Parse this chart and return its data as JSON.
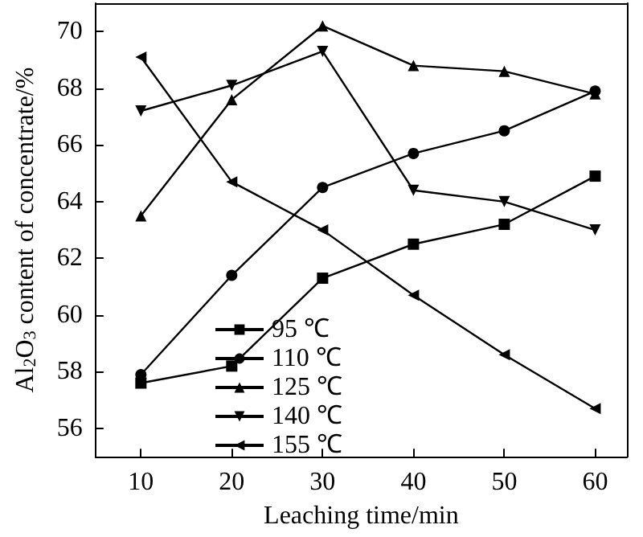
{
  "chart_data": {
    "type": "line",
    "xlabel": "Leaching time/min",
    "ylabel": "Al$_{2}$O$_{3}$ content of concentrate/%",
    "x": [
      10,
      20,
      30,
      40,
      50,
      60
    ],
    "xlim": [
      5,
      63.5
    ],
    "xticks": [
      10,
      20,
      30,
      40,
      50,
      60
    ],
    "ylim": [
      55,
      71
    ],
    "yticks": [
      56,
      58,
      60,
      62,
      64,
      66,
      68,
      70
    ],
    "legend": "bottom",
    "grid": false,
    "line_style": "solid",
    "series": [
      {
        "name": "95 ℃",
        "color": "#000000",
        "marker": "square",
        "values": [
          57.6,
          58.2,
          61.3,
          62.5,
          63.2,
          64.9
        ]
      },
      {
        "name": "110 ℃",
        "color": "#000000",
        "marker": "circle",
        "values": [
          57.9,
          61.4,
          64.5,
          65.7,
          66.5,
          67.9
        ]
      },
      {
        "name": "125 ℃",
        "color": "#000000",
        "marker": "triangle",
        "values": [
          63.5,
          67.6,
          70.2,
          68.8,
          68.6,
          67.8
        ]
      },
      {
        "name": "140 ℃",
        "color": "#000000",
        "marker": "triangle-down",
        "values": [
          67.2,
          68.1,
          69.3,
          64.4,
          64.0,
          63.0
        ]
      },
      {
        "name": "155 ℃",
        "color": "#000000",
        "marker": "triangle-left",
        "values": [
          69.1,
          64.7,
          63.0,
          60.7,
          58.6,
          56.7
        ]
      }
    ]
  }
}
